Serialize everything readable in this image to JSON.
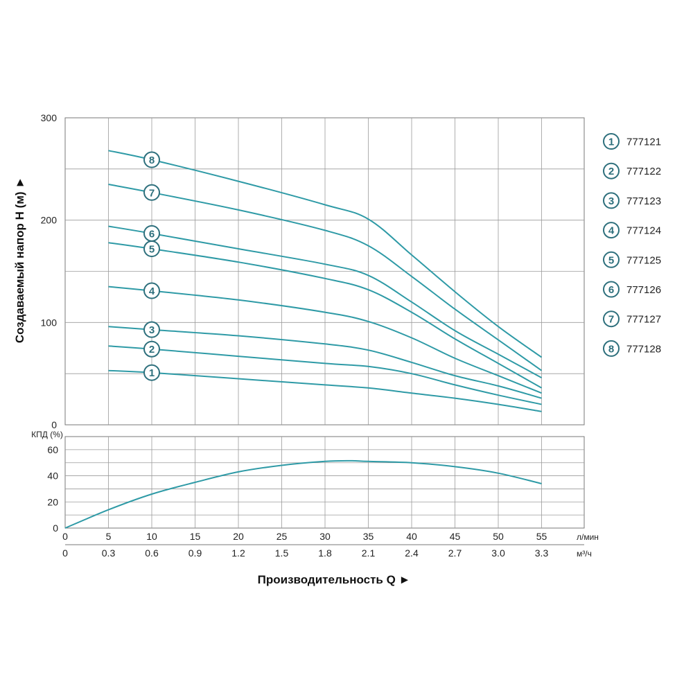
{
  "colors": {
    "curve": "#2e9aa6",
    "marker": "#2d6f7c",
    "grid": "#9a9a9a",
    "text": "#222222"
  },
  "chart_data": [
    {
      "type": "line",
      "ylabel": "Создаваемый напор H (м) ►",
      "ylim": [
        0,
        300
      ],
      "xlim": [
        0,
        55
      ],
      "y_ticks": [
        "0",
        "100",
        "200",
        "300"
      ],
      "grid": true,
      "x_unit": "л/мин",
      "series": [
        {
          "name": "1",
          "x": [
            5,
            10,
            20,
            30,
            35,
            40,
            45,
            50,
            55
          ],
          "y": [
            53,
            51,
            45,
            39,
            36,
            31,
            26,
            20,
            13
          ]
        },
        {
          "name": "2",
          "x": [
            5,
            10,
            20,
            30,
            35,
            40,
            45,
            50,
            55
          ],
          "y": [
            77,
            74,
            67,
            60,
            57,
            50,
            39,
            29,
            20
          ]
        },
        {
          "name": "3",
          "x": [
            5,
            10,
            20,
            30,
            35,
            40,
            45,
            50,
            55
          ],
          "y": [
            96,
            93,
            87,
            79,
            73,
            61,
            48,
            38,
            26
          ]
        },
        {
          "name": "4",
          "x": [
            5,
            10,
            20,
            30,
            35,
            40,
            45,
            50,
            55
          ],
          "y": [
            135,
            131,
            122,
            110,
            101,
            85,
            65,
            48,
            31
          ]
        },
        {
          "name": "5",
          "x": [
            5,
            10,
            20,
            30,
            35,
            40,
            45,
            50,
            55
          ],
          "y": [
            178,
            172,
            159,
            143,
            132,
            110,
            84,
            60,
            36
          ]
        },
        {
          "name": "6",
          "x": [
            5,
            10,
            20,
            30,
            35,
            40,
            45,
            50,
            55
          ],
          "y": [
            194,
            187,
            172,
            157,
            146,
            120,
            92,
            69,
            46
          ]
        },
        {
          "name": "7",
          "x": [
            5,
            10,
            20,
            30,
            35,
            40,
            45,
            50,
            55
          ],
          "y": [
            235,
            227,
            210,
            190,
            175,
            145,
            113,
            83,
            53
          ]
        },
        {
          "name": "8",
          "x": [
            5,
            10,
            20,
            30,
            35,
            40,
            45,
            50,
            55
          ],
          "y": [
            268,
            259,
            238,
            215,
            201,
            166,
            130,
            96,
            66
          ]
        }
      ],
      "markers_at_x": 10,
      "legend": [
        {
          "num": "1",
          "label": "777121"
        },
        {
          "num": "2",
          "label": "777122"
        },
        {
          "num": "3",
          "label": "777123"
        },
        {
          "num": "4",
          "label": "777124"
        },
        {
          "num": "5",
          "label": "777125"
        },
        {
          "num": "6",
          "label": "777126"
        },
        {
          "num": "7",
          "label": "777127"
        },
        {
          "num": "8",
          "label": "777128"
        }
      ]
    },
    {
      "type": "line",
      "ylabel": "КПД (%)",
      "ylim": [
        0,
        70
      ],
      "xlim": [
        0,
        55
      ],
      "y_ticks": [
        "0",
        "20",
        "40",
        "60"
      ],
      "grid": true,
      "x_ticks_lmin": [
        "0",
        "5",
        "10",
        "15",
        "20",
        "25",
        "30",
        "35",
        "40",
        "45",
        "50",
        "55"
      ],
      "x_unit_lmin": "л/мин",
      "x_ticks_m3h": [
        "0",
        "0.3",
        "0.6",
        "0.9",
        "1.2",
        "1.5",
        "1.8",
        "2.1",
        "2.4",
        "2.7",
        "3.0",
        "3.3"
      ],
      "x_unit_m3h": "м³/ч",
      "xlabel": "Производительность Q ►",
      "series": [
        {
          "x": [
            0,
            5,
            10,
            15,
            20,
            25,
            30,
            33,
            35,
            40,
            45,
            50,
            55
          ],
          "y": [
            0,
            14,
            26,
            35,
            43,
            48,
            51,
            51.5,
            51,
            50,
            47,
            42,
            34
          ]
        }
      ]
    }
  ]
}
